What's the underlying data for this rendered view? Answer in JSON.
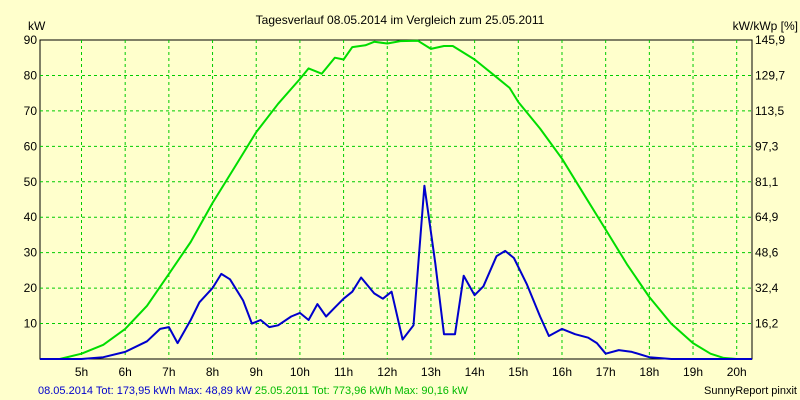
{
  "chart_data": {
    "type": "line",
    "title": "Tagesverlauf 08.05.2014 im Vergleich zum 25.05.2011",
    "ylabel_left": "kW",
    "ylabel_right": "kW/kWp [%]",
    "ylim": [
      0,
      90
    ],
    "xlim": [
      4.05,
      20.35
    ],
    "y_ticks": [
      10,
      20,
      30,
      40,
      50,
      60,
      70,
      80,
      90
    ],
    "y_right_ticks": [
      "16,2",
      "32,4",
      "48,6",
      "64,9",
      "81,1",
      "97,3",
      "113,5",
      "129,7",
      "145,9"
    ],
    "x_ticks": [
      {
        "x": 5,
        "label": "5h"
      },
      {
        "x": 6,
        "label": "6h"
      },
      {
        "x": 7,
        "label": "7h"
      },
      {
        "x": 8,
        "label": "8h"
      },
      {
        "x": 9,
        "label": "9h"
      },
      {
        "x": 10,
        "label": "10h"
      },
      {
        "x": 11,
        "label": "11h"
      },
      {
        "x": 12,
        "label": "12h"
      },
      {
        "x": 13,
        "label": "13h"
      },
      {
        "x": 14,
        "label": "14h"
      },
      {
        "x": 15,
        "label": "15h"
      },
      {
        "x": 16,
        "label": "16h"
      },
      {
        "x": 17,
        "label": "17h"
      },
      {
        "x": 18,
        "label": "18h"
      },
      {
        "x": 19,
        "label": "19h"
      },
      {
        "x": 20,
        "label": "20h"
      }
    ],
    "grid": true,
    "series": [
      {
        "name": "25.05.2011",
        "color": "#00DD00",
        "points": [
          [
            4.05,
            0
          ],
          [
            4.5,
            0
          ],
          [
            5.0,
            1.5
          ],
          [
            5.5,
            4
          ],
          [
            6.0,
            8.5
          ],
          [
            6.5,
            15
          ],
          [
            7.0,
            24
          ],
          [
            7.5,
            33
          ],
          [
            8.0,
            44
          ],
          [
            8.5,
            54
          ],
          [
            9.0,
            64
          ],
          [
            9.5,
            72
          ],
          [
            10.0,
            79
          ],
          [
            10.2,
            82
          ],
          [
            10.5,
            80.5
          ],
          [
            10.8,
            85
          ],
          [
            11.0,
            84.5
          ],
          [
            11.2,
            88
          ],
          [
            11.5,
            88.5
          ],
          [
            11.7,
            89.5
          ],
          [
            12.0,
            89
          ],
          [
            12.3,
            89.7
          ],
          [
            12.7,
            89.8
          ],
          [
            13.0,
            87.5
          ],
          [
            13.3,
            88.3
          ],
          [
            13.5,
            88.3
          ],
          [
            14.0,
            84.5
          ],
          [
            14.5,
            79.5
          ],
          [
            14.8,
            76.5
          ],
          [
            15.0,
            72.5
          ],
          [
            15.5,
            65
          ],
          [
            16.0,
            56.5
          ],
          [
            16.5,
            46.5
          ],
          [
            17.0,
            36.5
          ],
          [
            17.5,
            26.5
          ],
          [
            18.0,
            17.5
          ],
          [
            18.5,
            10
          ],
          [
            19.0,
            4.5
          ],
          [
            19.4,
            1.5
          ],
          [
            19.7,
            0.3
          ],
          [
            20.0,
            0
          ],
          [
            20.35,
            0
          ]
        ]
      },
      {
        "name": "08.05.2014",
        "color": "#0000CC",
        "points": [
          [
            4.05,
            0
          ],
          [
            5.0,
            0
          ],
          [
            5.5,
            0.5
          ],
          [
            6.0,
            2
          ],
          [
            6.5,
            5
          ],
          [
            6.8,
            8.5
          ],
          [
            7.0,
            9
          ],
          [
            7.2,
            4.5
          ],
          [
            7.5,
            11
          ],
          [
            7.7,
            16
          ],
          [
            8.0,
            20
          ],
          [
            8.2,
            24
          ],
          [
            8.4,
            22.5
          ],
          [
            8.7,
            16.5
          ],
          [
            8.9,
            10
          ],
          [
            9.1,
            11
          ],
          [
            9.3,
            9
          ],
          [
            9.5,
            9.5
          ],
          [
            9.8,
            12
          ],
          [
            10.0,
            13
          ],
          [
            10.2,
            11
          ],
          [
            10.4,
            15.5
          ],
          [
            10.6,
            12
          ],
          [
            10.8,
            14.5
          ],
          [
            11.0,
            17
          ],
          [
            11.2,
            19
          ],
          [
            11.4,
            23
          ],
          [
            11.7,
            18.5
          ],
          [
            11.9,
            17
          ],
          [
            12.1,
            19
          ],
          [
            12.35,
            5.5
          ],
          [
            12.6,
            9.5
          ],
          [
            12.85,
            48.9
          ],
          [
            13.1,
            27
          ],
          [
            13.3,
            7
          ],
          [
            13.55,
            7
          ],
          [
            13.75,
            23.5
          ],
          [
            14.0,
            18
          ],
          [
            14.2,
            20.5
          ],
          [
            14.5,
            29
          ],
          [
            14.7,
            30.5
          ],
          [
            14.9,
            28.5
          ],
          [
            15.2,
            21
          ],
          [
            15.5,
            12
          ],
          [
            15.7,
            6.5
          ],
          [
            16.0,
            8.5
          ],
          [
            16.3,
            7
          ],
          [
            16.6,
            6
          ],
          [
            16.8,
            4.5
          ],
          [
            17.0,
            1.5
          ],
          [
            17.3,
            2.5
          ],
          [
            17.6,
            2
          ],
          [
            18.0,
            0.5
          ],
          [
            18.5,
            0
          ],
          [
            20.35,
            0
          ]
        ]
      }
    ],
    "footer_left": [
      {
        "text": "08.05.2014 Tot: 173,95 kWh Max: 48,89 kW",
        "color": "#0000CC"
      },
      {
        "text": " 25.05.2011 Tot: 773,96 kWh Max: 90,16 kW",
        "color": "#00BB00"
      }
    ],
    "footer_right": "SunnyReport pinxit"
  }
}
